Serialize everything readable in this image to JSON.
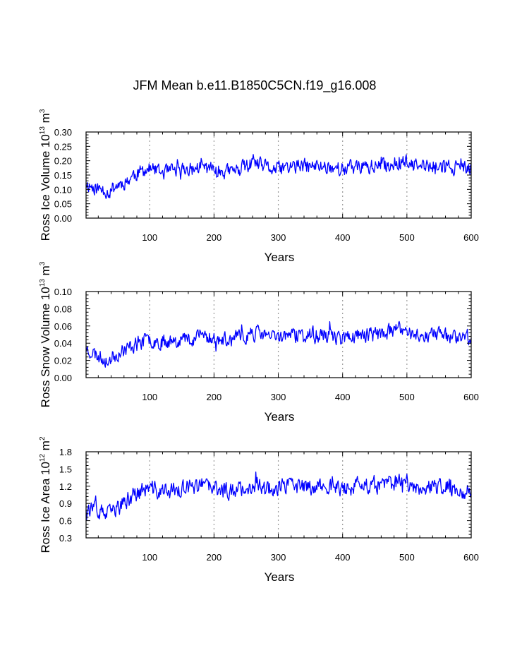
{
  "title": "JFM Mean b.e11.B1850C5CN.f19_g16.008",
  "colors": {
    "series": "#0000ff",
    "axis": "#000000",
    "grid": "#999999"
  },
  "chart_data": [
    {
      "type": "line",
      "ylabel": {
        "prefix": "Ross Ice Volume 10",
        "exp1": "13",
        "mid": " m",
        "exp2": "3"
      },
      "xlabel": "Years",
      "xlim": [
        1,
        600
      ],
      "ylim": [
        0.0,
        0.3
      ],
      "xticks": [
        "100",
        "200",
        "300",
        "400",
        "500",
        "600"
      ],
      "xtick_values": [
        100,
        200,
        300,
        400,
        500,
        600
      ],
      "yticks": [
        "0.00",
        "0.05",
        "0.10",
        "0.15",
        "0.20",
        "0.25",
        "0.30"
      ],
      "ytick_values": [
        0.0,
        0.05,
        0.1,
        0.15,
        0.2,
        0.25,
        0.3
      ],
      "grid": "vertical dotted at x ticks",
      "series": [
        {
          "name": "Ross Ice Volume",
          "control_x": [
            1,
            10,
            20,
            30,
            36,
            45,
            55,
            65,
            75,
            85,
            95,
            105,
            115,
            130,
            150,
            170,
            180,
            200,
            220,
            240,
            260,
            280,
            290,
            300,
            320,
            340,
            360,
            380,
            400,
            420,
            440,
            460,
            480,
            495,
            510,
            530,
            550,
            570,
            590,
            600
          ],
          "control_y": [
            0.12,
            0.11,
            0.1,
            0.1,
            0.09,
            0.11,
            0.12,
            0.13,
            0.15,
            0.16,
            0.17,
            0.17,
            0.16,
            0.16,
            0.17,
            0.17,
            0.18,
            0.17,
            0.16,
            0.17,
            0.19,
            0.18,
            0.17,
            0.17,
            0.18,
            0.18,
            0.18,
            0.18,
            0.17,
            0.18,
            0.18,
            0.18,
            0.19,
            0.2,
            0.18,
            0.18,
            0.18,
            0.18,
            0.17,
            0.17
          ],
          "amplitude": 0.035,
          "ymin_clip": 0.035,
          "ymax_clip": 0.29,
          "seed": 11
        }
      ]
    },
    {
      "type": "line",
      "ylabel": {
        "prefix": "Ross Snow Volume 10",
        "exp1": "13",
        "mid": " m",
        "exp2": "3"
      },
      "xlabel": "Years",
      "xlim": [
        1,
        600
      ],
      "ylim": [
        0.0,
        0.1
      ],
      "xticks": [
        "100",
        "200",
        "300",
        "400",
        "500",
        "600"
      ],
      "xtick_values": [
        100,
        200,
        300,
        400,
        500,
        600
      ],
      "yticks": [
        "0.00",
        "0.02",
        "0.04",
        "0.06",
        "0.08",
        "0.10"
      ],
      "ytick_values": [
        0.0,
        0.02,
        0.04,
        0.06,
        0.08,
        0.1
      ],
      "grid": "vertical dotted at x ticks",
      "series": [
        {
          "name": "Ross Snow Volume",
          "control_x": [
            1,
            10,
            20,
            30,
            36,
            45,
            55,
            65,
            75,
            85,
            95,
            105,
            115,
            130,
            150,
            170,
            180,
            200,
            220,
            240,
            260,
            280,
            290,
            300,
            320,
            340,
            360,
            380,
            400,
            420,
            440,
            460,
            480,
            495,
            510,
            530,
            550,
            570,
            590,
            600
          ],
          "control_y": [
            0.034,
            0.03,
            0.025,
            0.022,
            0.02,
            0.026,
            0.03,
            0.034,
            0.038,
            0.041,
            0.043,
            0.044,
            0.042,
            0.043,
            0.045,
            0.046,
            0.05,
            0.045,
            0.043,
            0.046,
            0.052,
            0.05,
            0.046,
            0.048,
            0.05,
            0.048,
            0.049,
            0.049,
            0.046,
            0.049,
            0.05,
            0.051,
            0.054,
            0.056,
            0.05,
            0.05,
            0.05,
            0.049,
            0.047,
            0.048
          ],
          "amplitude": 0.012,
          "ymin_clip": 0.005,
          "ymax_clip": 0.087,
          "seed": 23
        }
      ]
    },
    {
      "type": "line",
      "ylabel": {
        "prefix": "Ross Ice Area 10",
        "exp1": "12",
        "mid": " m",
        "exp2": "2"
      },
      "xlabel": "Years",
      "xlim": [
        1,
        600
      ],
      "ylim": [
        0.3,
        1.8
      ],
      "xticks": [
        "100",
        "200",
        "300",
        "400",
        "500",
        "600"
      ],
      "xtick_values": [
        100,
        200,
        300,
        400,
        500,
        600
      ],
      "yticks": [
        "0.3",
        "0.6",
        "0.9",
        "1.2",
        "1.5",
        "1.8"
      ],
      "ytick_values": [
        0.3,
        0.6,
        0.9,
        1.2,
        1.5,
        1.8
      ],
      "grid": "vertical dotted at x ticks",
      "series": [
        {
          "name": "Ross Ice Area",
          "control_x": [
            1,
            10,
            20,
            30,
            36,
            45,
            55,
            65,
            75,
            85,
            95,
            105,
            115,
            130,
            150,
            170,
            180,
            200,
            220,
            240,
            260,
            280,
            290,
            300,
            320,
            340,
            360,
            380,
            400,
            420,
            440,
            460,
            480,
            495,
            510,
            530,
            550,
            570,
            590,
            600
          ],
          "control_y": [
            0.85,
            0.8,
            0.75,
            0.72,
            0.7,
            0.8,
            0.85,
            0.95,
            1.05,
            1.1,
            1.15,
            1.15,
            1.1,
            1.12,
            1.15,
            1.18,
            1.22,
            1.15,
            1.12,
            1.15,
            1.22,
            1.2,
            1.15,
            1.18,
            1.2,
            1.18,
            1.2,
            1.2,
            1.15,
            1.2,
            1.22,
            1.22,
            1.25,
            1.28,
            1.2,
            1.18,
            1.18,
            1.17,
            1.12,
            1.12
          ],
          "amplitude": 0.2,
          "ymin_clip": 0.33,
          "ymax_clip": 1.73,
          "seed": 37
        }
      ]
    }
  ]
}
